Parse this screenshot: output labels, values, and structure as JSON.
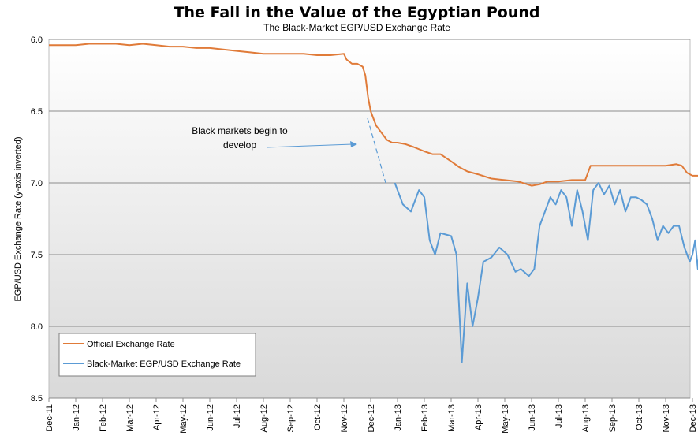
{
  "chart_data": {
    "type": "line",
    "title": "The Fall in the Value of the Egyptian Pound",
    "subtitle": "The Black-Market EGP/USD Exchange Rate",
    "ylabel": "EGP/USD Exchange Rate (y-axis inverted)",
    "xlabel": "",
    "ylim": [
      6.0,
      8.5
    ],
    "y_inverted": true,
    "y_ticks": [
      "6.0",
      "6.5",
      "7.0",
      "7.5",
      "8.0",
      "8.5"
    ],
    "x_categories": [
      "Dec-11",
      "Jan-12",
      "Feb-12",
      "Mar-12",
      "Apr-12",
      "May-12",
      "Jun-12",
      "Jul-12",
      "Aug-12",
      "Sep-12",
      "Oct-12",
      "Nov-12",
      "Dec-12",
      "Jan-13",
      "Feb-13",
      "Mar-13",
      "Apr-13",
      "May-13",
      "Jun-13",
      "Jul-13",
      "Aug-13",
      "Sep-13",
      "Oct-13",
      "Nov-13",
      "Dec-13"
    ],
    "grid": true,
    "legend_position": "bottom-left",
    "series": [
      {
        "name": "Official Exchange Rate",
        "color": "#e07b39",
        "x": [
          0,
          0.5,
          1.0,
          1.5,
          2.0,
          2.5,
          3.0,
          3.5,
          4.0,
          4.5,
          5.0,
          5.5,
          6.0,
          6.5,
          7.0,
          7.5,
          8.0,
          8.5,
          9.0,
          9.5,
          10.0,
          10.5,
          11.0,
          11.1,
          11.3,
          11.5,
          11.7,
          11.8,
          11.9,
          12.0,
          12.1,
          12.2,
          12.4,
          12.6,
          12.8,
          13.0,
          13.3,
          13.6,
          14.0,
          14.3,
          14.6,
          15.0,
          15.3,
          15.6,
          16.0,
          16.5,
          17.0,
          17.5,
          18.0,
          18.3,
          18.6,
          19.0,
          19.5,
          20.0,
          20.1,
          20.2,
          21.0,
          22.0,
          23.0,
          23.4,
          23.6,
          23.8,
          24.0,
          24.3
        ],
        "values": [
          6.04,
          6.04,
          6.04,
          6.03,
          6.03,
          6.03,
          6.04,
          6.03,
          6.04,
          6.05,
          6.05,
          6.06,
          6.06,
          6.07,
          6.08,
          6.09,
          6.1,
          6.1,
          6.1,
          6.1,
          6.11,
          6.11,
          6.1,
          6.14,
          6.17,
          6.17,
          6.19,
          6.25,
          6.4,
          6.5,
          6.55,
          6.6,
          6.65,
          6.7,
          6.72,
          6.72,
          6.73,
          6.75,
          6.78,
          6.8,
          6.8,
          6.85,
          6.89,
          6.92,
          6.94,
          6.97,
          6.98,
          6.99,
          7.02,
          7.01,
          6.99,
          6.99,
          6.98,
          6.98,
          6.93,
          6.88,
          6.88,
          6.88,
          6.88,
          6.87,
          6.88,
          6.93,
          6.95,
          6.95
        ]
      },
      {
        "name": "Black-Market EGP/USD Exchange Rate",
        "color": "#5b9bd5",
        "x": [
          12.9,
          13.2,
          13.5,
          13.8,
          14.0,
          14.2,
          14.4,
          14.6,
          14.8,
          15.0,
          15.2,
          15.4,
          15.6,
          15.8,
          16.0,
          16.2,
          16.5,
          16.8,
          17.1,
          17.4,
          17.6,
          17.9,
          18.1,
          18.3,
          18.5,
          18.7,
          18.9,
          19.1,
          19.3,
          19.5,
          19.7,
          19.9,
          20.1,
          20.3,
          20.5,
          20.7,
          20.9,
          21.1,
          21.3,
          21.5,
          21.7,
          21.9,
          22.1,
          22.3,
          22.5,
          22.7,
          22.9,
          23.1,
          23.3,
          23.5,
          23.7,
          23.9,
          24.0,
          24.1,
          24.2,
          24.3
        ],
        "values": [
          7.0,
          7.15,
          7.2,
          7.05,
          7.1,
          7.4,
          7.5,
          7.35,
          7.36,
          7.37,
          7.5,
          8.25,
          7.7,
          8.0,
          7.8,
          7.55,
          7.52,
          7.45,
          7.5,
          7.62,
          7.6,
          7.65,
          7.6,
          7.3,
          7.2,
          7.1,
          7.15,
          7.05,
          7.1,
          7.3,
          7.05,
          7.2,
          7.4,
          7.05,
          7.0,
          7.08,
          7.02,
          7.15,
          7.05,
          7.2,
          7.1,
          7.1,
          7.12,
          7.15,
          7.25,
          7.4,
          7.3,
          7.35,
          7.3,
          7.3,
          7.45,
          7.55,
          7.5,
          7.4,
          7.6,
          7.4
        ]
      }
    ],
    "annotation": {
      "text_line1": "Black markets begin to",
      "text_line2": "develop"
    }
  }
}
